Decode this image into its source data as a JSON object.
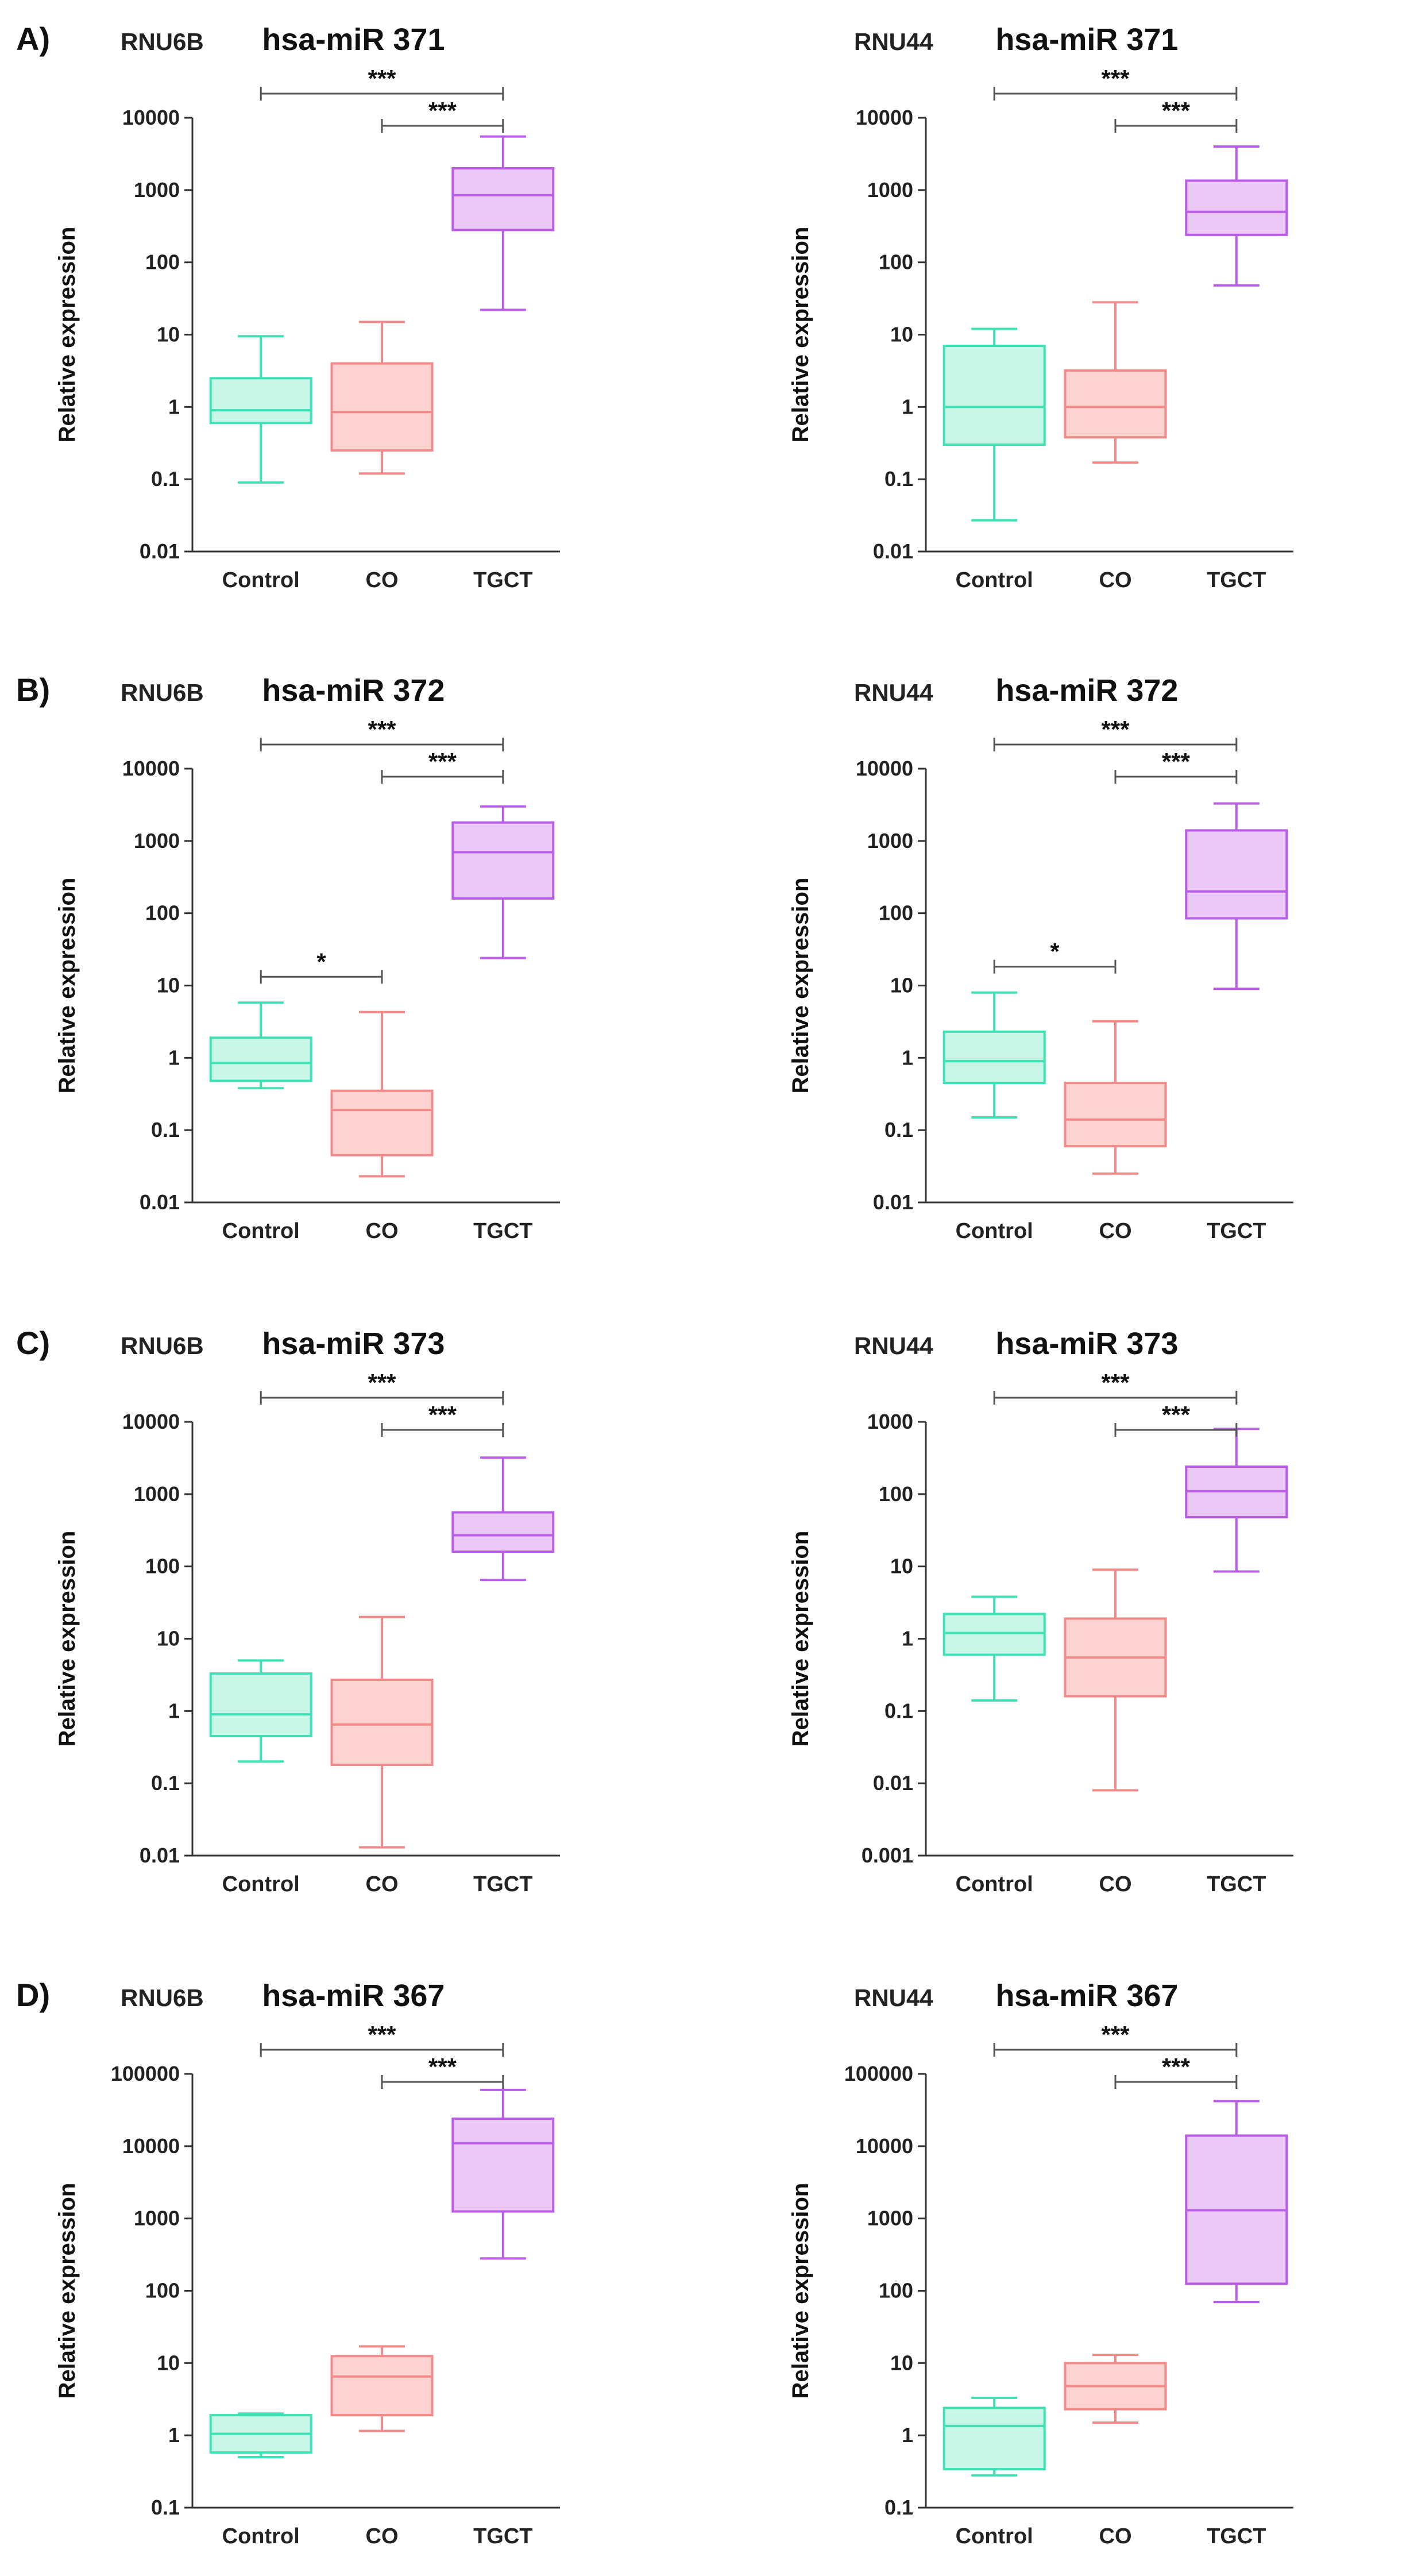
{
  "figure": {
    "groups": [
      "Control",
      "CO",
      "TGCT"
    ],
    "ylabel": "Relative expression",
    "colors": {
      "Control": {
        "stroke": "#3fe0b4",
        "fill": "#c8f7e7"
      },
      "CO": {
        "stroke": "#f28a8a",
        "fill": "#fcd3d0"
      },
      "TGCT": {
        "stroke": "#b95ce8",
        "fill": "#ecc8f7"
      }
    }
  },
  "chart_data": [
    {
      "panel": "A)",
      "norm": "RNU6B",
      "type": "boxplot",
      "title": "hsa-miR 371",
      "scale": "log",
      "ylim": [
        0.01,
        10000
      ],
      "yticks": [
        "0.01",
        "0.1",
        "1",
        "10",
        "100",
        "1000",
        "10000"
      ],
      "boxes": [
        {
          "group": "Control",
          "min": 0.09,
          "q1": 0.6,
          "median": 0.9,
          "q3": 2.5,
          "max": 9.5
        },
        {
          "group": "CO",
          "min": 0.12,
          "q1": 0.25,
          "median": 0.85,
          "q3": 4.0,
          "max": 15
        },
        {
          "group": "TGCT",
          "min": 22,
          "q1": 280,
          "median": 850,
          "q3": 2000,
          "max": 5500
        }
      ],
      "significance": [
        {
          "from": "Control",
          "to": "TGCT",
          "label": "***"
        },
        {
          "from": "CO",
          "to": "TGCT",
          "label": "***"
        }
      ]
    },
    {
      "panel": "",
      "norm": "RNU44",
      "type": "boxplot",
      "title": "hsa-miR 371",
      "scale": "log",
      "ylim": [
        0.01,
        10000
      ],
      "yticks": [
        "0.01",
        "0.1",
        "1",
        "10",
        "100",
        "1000",
        "10000"
      ],
      "boxes": [
        {
          "group": "Control",
          "min": 0.027,
          "q1": 0.3,
          "median": 1.0,
          "q3": 7.0,
          "max": 12
        },
        {
          "group": "CO",
          "min": 0.17,
          "q1": 0.38,
          "median": 1.0,
          "q3": 3.2,
          "max": 28
        },
        {
          "group": "TGCT",
          "min": 48,
          "q1": 240,
          "median": 500,
          "q3": 1350,
          "max": 4000
        }
      ],
      "significance": [
        {
          "from": "Control",
          "to": "TGCT",
          "label": "***"
        },
        {
          "from": "CO",
          "to": "TGCT",
          "label": "***"
        }
      ]
    },
    {
      "panel": "B)",
      "norm": "RNU6B",
      "type": "boxplot",
      "title": "hsa-miR 372",
      "scale": "log",
      "ylim": [
        0.01,
        10000
      ],
      "yticks": [
        "0.01",
        "0.1",
        "1",
        "10",
        "100",
        "1000",
        "10000"
      ],
      "boxes": [
        {
          "group": "Control",
          "min": 0.38,
          "q1": 0.48,
          "median": 0.85,
          "q3": 1.9,
          "max": 5.8
        },
        {
          "group": "CO",
          "min": 0.023,
          "q1": 0.045,
          "median": 0.19,
          "q3": 0.35,
          "max": 4.3
        },
        {
          "group": "TGCT",
          "min": 24,
          "q1": 160,
          "median": 700,
          "q3": 1800,
          "max": 3000
        }
      ],
      "significance": [
        {
          "from": "Control",
          "to": "TGCT",
          "label": "***"
        },
        {
          "from": "CO",
          "to": "TGCT",
          "label": "***"
        },
        {
          "from": "Control",
          "to": "CO",
          "label": "*"
        }
      ]
    },
    {
      "panel": "",
      "norm": "RNU44",
      "type": "boxplot",
      "title": "hsa-miR 372",
      "scale": "log",
      "ylim": [
        0.01,
        10000
      ],
      "yticks": [
        "0.01",
        "0.1",
        "1",
        "10",
        "100",
        "1000",
        "10000"
      ],
      "boxes": [
        {
          "group": "Control",
          "min": 0.15,
          "q1": 0.45,
          "median": 0.9,
          "q3": 2.3,
          "max": 8
        },
        {
          "group": "CO",
          "min": 0.025,
          "q1": 0.06,
          "median": 0.14,
          "q3": 0.45,
          "max": 3.2
        },
        {
          "group": "TGCT",
          "min": 9,
          "q1": 85,
          "median": 200,
          "q3": 1400,
          "max": 3300
        }
      ],
      "significance": [
        {
          "from": "Control",
          "to": "TGCT",
          "label": "***"
        },
        {
          "from": "CO",
          "to": "TGCT",
          "label": "***"
        },
        {
          "from": "Control",
          "to": "CO",
          "label": "*"
        }
      ]
    },
    {
      "panel": "C)",
      "norm": "RNU6B",
      "type": "boxplot",
      "title": "hsa-miR 373",
      "scale": "log",
      "ylim": [
        0.01,
        10000
      ],
      "yticks": [
        "0.01",
        "0.1",
        "1",
        "10",
        "100",
        "1000",
        "10000"
      ],
      "boxes": [
        {
          "group": "Control",
          "min": 0.2,
          "q1": 0.45,
          "median": 0.9,
          "q3": 3.3,
          "max": 5.0
        },
        {
          "group": "CO",
          "min": 0.013,
          "q1": 0.18,
          "median": 0.65,
          "q3": 2.7,
          "max": 20
        },
        {
          "group": "TGCT",
          "min": 65,
          "q1": 160,
          "median": 270,
          "q3": 560,
          "max": 3200
        }
      ],
      "significance": [
        {
          "from": "Control",
          "to": "TGCT",
          "label": "***"
        },
        {
          "from": "CO",
          "to": "TGCT",
          "label": "***"
        }
      ]
    },
    {
      "panel": "",
      "norm": "RNU44",
      "type": "boxplot",
      "title": "hsa-miR 373",
      "scale": "log",
      "ylim": [
        0.001,
        1000
      ],
      "yticks": [
        "0.001",
        "0.01",
        "0.1",
        "1",
        "10",
        "100",
        "1000"
      ],
      "boxes": [
        {
          "group": "Control",
          "min": 0.14,
          "q1": 0.6,
          "median": 1.2,
          "q3": 2.2,
          "max": 3.8
        },
        {
          "group": "CO",
          "min": 0.008,
          "q1": 0.16,
          "median": 0.55,
          "q3": 1.9,
          "max": 9
        },
        {
          "group": "TGCT",
          "min": 8.5,
          "q1": 48,
          "median": 110,
          "q3": 240,
          "max": 800
        }
      ],
      "significance": [
        {
          "from": "Control",
          "to": "TGCT",
          "label": "***"
        },
        {
          "from": "CO",
          "to": "TGCT",
          "label": "***"
        }
      ]
    },
    {
      "panel": "D)",
      "norm": "RNU6B",
      "type": "boxplot",
      "title": "hsa-miR 367",
      "scale": "log",
      "ylim": [
        0.1,
        100000
      ],
      "yticks": [
        "0.1",
        "1",
        "10",
        "100",
        "1000",
        "10000",
        "100000"
      ],
      "boxes": [
        {
          "group": "Control",
          "min": 0.5,
          "q1": 0.58,
          "median": 1.05,
          "q3": 1.9,
          "max": 2.0
        },
        {
          "group": "CO",
          "min": 1.15,
          "q1": 1.9,
          "median": 6.5,
          "q3": 12.5,
          "max": 17
        },
        {
          "group": "TGCT",
          "min": 280,
          "q1": 1250,
          "median": 11000,
          "q3": 24000,
          "max": 60000
        }
      ],
      "significance": [
        {
          "from": "Control",
          "to": "TGCT",
          "label": "***"
        },
        {
          "from": "CO",
          "to": "TGCT",
          "label": "***"
        }
      ]
    },
    {
      "panel": "",
      "norm": "RNU44",
      "type": "boxplot",
      "title": "hsa-miR 367",
      "scale": "log",
      "ylim": [
        0.1,
        100000
      ],
      "yticks": [
        "0.1",
        "1",
        "10",
        "100",
        "1000",
        "10000",
        "100000"
      ],
      "boxes": [
        {
          "group": "Control",
          "min": 0.28,
          "q1": 0.34,
          "median": 1.35,
          "q3": 2.4,
          "max": 3.3
        },
        {
          "group": "CO",
          "min": 1.5,
          "q1": 2.3,
          "median": 4.8,
          "q3": 10,
          "max": 13
        },
        {
          "group": "TGCT",
          "min": 70,
          "q1": 125,
          "median": 1300,
          "q3": 14000,
          "max": 42000
        }
      ],
      "significance": [
        {
          "from": "Control",
          "to": "TGCT",
          "label": "***"
        },
        {
          "from": "CO",
          "to": "TGCT",
          "label": "***"
        }
      ]
    }
  ]
}
